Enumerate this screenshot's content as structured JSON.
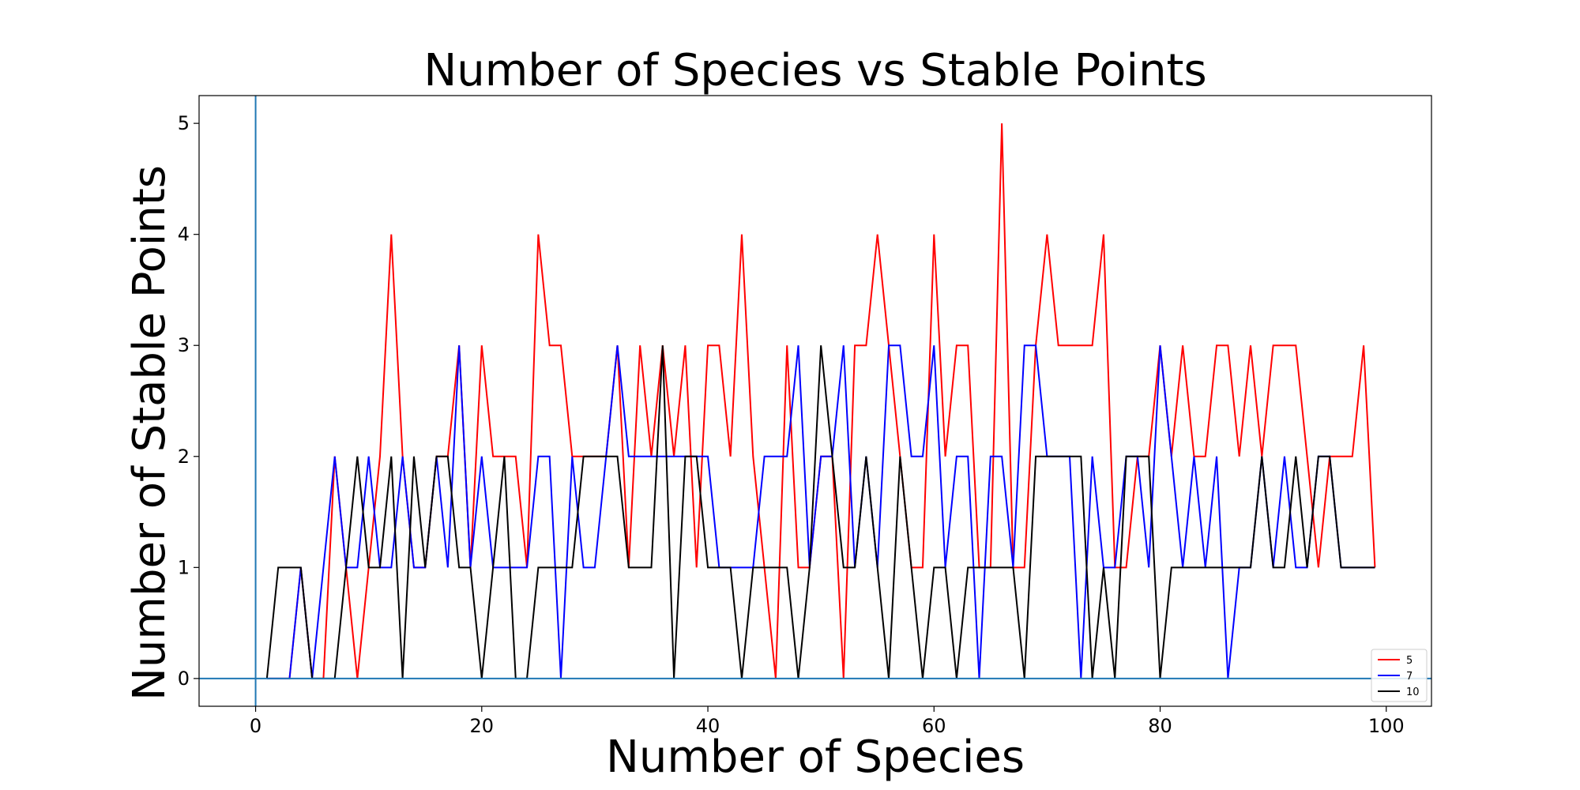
{
  "chart_data": {
    "type": "line",
    "title": "Number of Species vs Stable Points",
    "xlabel": "Number of Species",
    "ylabel": "Number of Stable Points",
    "xlim": [
      -5,
      104
    ],
    "ylim": [
      -0.25,
      5.25
    ],
    "xticks": [
      0,
      20,
      40,
      60,
      80,
      100
    ],
    "yticks": [
      0,
      1,
      2,
      3,
      4,
      5
    ],
    "grid": false,
    "legend_position": "lower-right",
    "reference_lines": {
      "x": 0,
      "y": 0,
      "color": "#1f77b4"
    },
    "x": [
      1,
      2,
      3,
      4,
      5,
      6,
      7,
      8,
      9,
      10,
      11,
      12,
      13,
      14,
      15,
      16,
      17,
      18,
      19,
      20,
      21,
      22,
      23,
      24,
      25,
      26,
      27,
      28,
      29,
      30,
      31,
      32,
      33,
      34,
      35,
      36,
      37,
      38,
      39,
      40,
      41,
      42,
      43,
      44,
      45,
      46,
      47,
      48,
      49,
      50,
      51,
      52,
      53,
      54,
      55,
      56,
      57,
      58,
      59,
      60,
      61,
      62,
      63,
      64,
      65,
      66,
      67,
      68,
      69,
      70,
      71,
      72,
      73,
      74,
      75,
      76,
      77,
      78,
      79,
      80,
      81,
      82,
      83,
      84,
      85,
      86,
      87,
      88,
      89,
      90,
      91,
      92,
      93,
      94,
      95,
      96,
      97,
      98,
      99
    ],
    "series": [
      {
        "name": "5",
        "color": "#ff0000",
        "values": [
          0,
          0,
          0,
          1,
          0,
          0,
          2,
          1,
          0,
          1,
          2,
          4,
          2,
          1,
          1,
          2,
          2,
          3,
          1,
          3,
          2,
          2,
          2,
          1,
          4,
          3,
          3,
          2,
          2,
          2,
          2,
          3,
          1,
          3,
          2,
          3,
          2,
          3,
          1,
          3,
          3,
          2,
          4,
          2,
          1,
          0,
          3,
          1,
          1,
          2,
          2,
          0,
          3,
          3,
          4,
          3,
          2,
          1,
          1,
          4,
          2,
          3,
          3,
          1,
          1,
          5,
          1,
          1,
          3,
          4,
          3,
          3,
          3,
          3,
          4,
          1,
          1,
          2,
          2,
          3,
          2,
          3,
          2,
          2,
          3,
          3,
          2,
          3,
          2,
          3,
          3,
          3,
          2,
          1,
          2,
          2,
          2,
          3,
          1
        ]
      },
      {
        "name": "7",
        "color": "#0000ff",
        "values": [
          0,
          0,
          0,
          1,
          0,
          1,
          2,
          1,
          1,
          2,
          1,
          1,
          2,
          1,
          1,
          2,
          1,
          3,
          1,
          2,
          1,
          1,
          1,
          1,
          2,
          2,
          0,
          2,
          1,
          1,
          2,
          3,
          2,
          2,
          2,
          2,
          2,
          2,
          2,
          2,
          1,
          1,
          1,
          1,
          2,
          2,
          2,
          3,
          1,
          2,
          2,
          3,
          1,
          2,
          1,
          3,
          3,
          2,
          2,
          3,
          1,
          2,
          2,
          0,
          2,
          2,
          1,
          3,
          3,
          2,
          2,
          2,
          0,
          2,
          1,
          1,
          2,
          2,
          1,
          3,
          2,
          1,
          2,
          1,
          2,
          0,
          1,
          1,
          2,
          1,
          2,
          1,
          1,
          2,
          2,
          1,
          1,
          1,
          1
        ]
      },
      {
        "name": "10",
        "color": "#000000",
        "values": [
          0,
          1,
          1,
          1,
          0,
          0,
          0,
          1,
          2,
          1,
          1,
          2,
          0,
          2,
          1,
          2,
          2,
          1,
          1,
          0,
          1,
          2,
          0,
          0,
          1,
          1,
          1,
          1,
          2,
          2,
          2,
          2,
          1,
          1,
          1,
          3,
          0,
          2,
          2,
          1,
          1,
          1,
          0,
          1,
          1,
          1,
          1,
          0,
          1,
          3,
          2,
          1,
          1,
          2,
          1,
          0,
          2,
          1,
          0,
          1,
          1,
          0,
          1,
          1,
          1,
          1,
          1,
          0,
          2,
          2,
          2,
          2,
          2,
          0,
          1,
          0,
          2,
          2,
          2,
          0,
          1,
          1,
          1,
          1,
          1,
          1,
          1,
          1,
          2,
          1,
          1,
          2,
          1,
          2,
          2,
          1,
          1,
          1,
          1
        ]
      }
    ]
  }
}
